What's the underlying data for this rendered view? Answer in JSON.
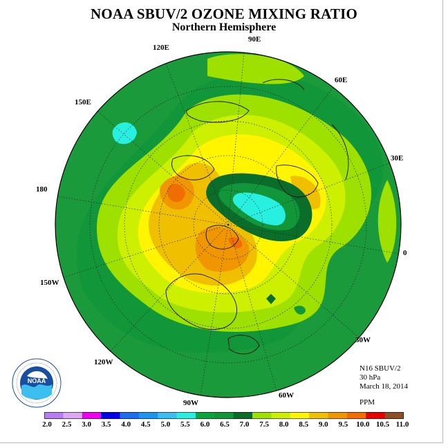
{
  "title": "NOAA SBUV/2 OZONE MIXING RATIO",
  "subtitle": "Northern Hemisphere",
  "lon_labels": {
    "l90e": "90E",
    "l60e": "60E",
    "l30e": "30E",
    "l0": "0",
    "l30w": "30W",
    "l60w": "60W",
    "l90w": "90W",
    "l120w": "120W",
    "l150w": "150W",
    "l180": "180",
    "l150e": "150E",
    "l120e": "120E"
  },
  "info": {
    "instrument": "N16 SBUV/2",
    "level": "30 hPa",
    "date": "March 18, 2014",
    "units": "PPM"
  },
  "colorbar": {
    "labels": [
      "2.0",
      "2.5",
      "3.0",
      "3.5",
      "4.0",
      "4.5",
      "5.0",
      "5.5",
      "6.0",
      "6.5",
      "7.0",
      "7.5",
      "8.0",
      "8.5",
      "9.0",
      "9.5",
      "10.0",
      "10.5",
      "11.0"
    ],
    "colors": [
      "#b67ef0",
      "#dca8f2",
      "#f000f0",
      "#0000e8",
      "#1e6ef0",
      "#1e96f0",
      "#3cbef0",
      "#28f0e0",
      "#0aa53c",
      "#12963a",
      "#0a6e2a",
      "#9ee000",
      "#ccf000",
      "#fff500",
      "#f0c000",
      "#f09600",
      "#f06e00",
      "#e60000",
      "#8c5028"
    ]
  },
  "logo": {
    "text": "NOAA",
    "ring_text": "NATIONAL OCEANIC AND ATMOSPHERIC ADMINISTRATION · U.S. DEPARTMENT OF COMMERCE"
  },
  "colors": {
    "background_field": "#1e9a3c",
    "frame": "#b9b9b9"
  }
}
